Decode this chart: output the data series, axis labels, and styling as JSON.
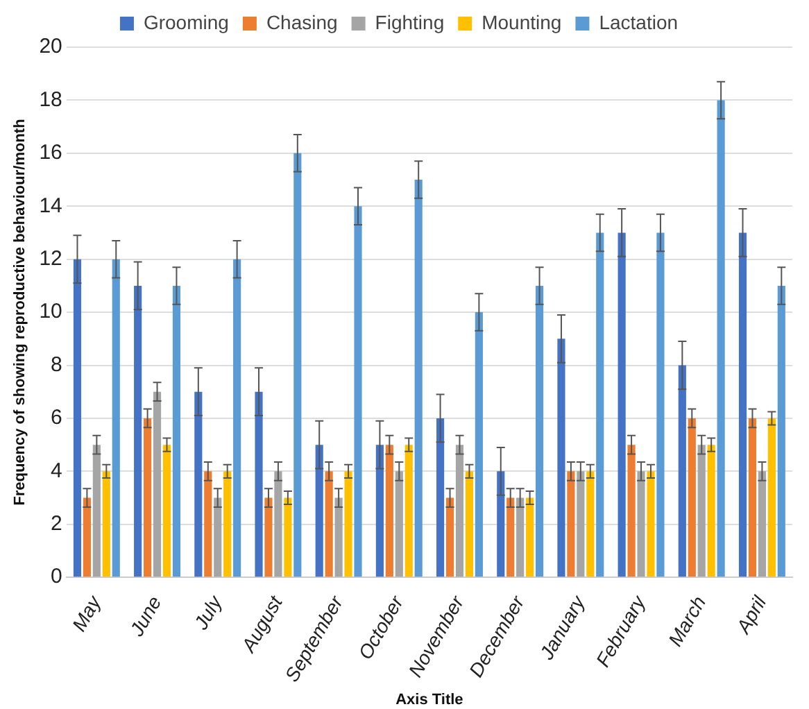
{
  "chart_data": {
    "type": "bar",
    "xlabel": "Axis Title",
    "ylabel": "Frequency of showing reproductive behaviour/month",
    "categories": [
      "May",
      "June",
      "July",
      "August",
      "September",
      "October",
      "November",
      "December",
      "January",
      "February",
      "March",
      "April"
    ],
    "series": [
      {
        "name": "Grooming",
        "color": "#4472c4",
        "values": [
          12,
          11,
          7,
          7,
          5,
          5,
          6,
          4,
          9,
          13,
          8,
          13
        ],
        "errors": [
          0.9,
          0.9,
          0.9,
          0.9,
          0.9,
          0.9,
          0.9,
          0.9,
          0.9,
          0.9,
          0.9,
          0.9
        ]
      },
      {
        "name": "Chasing",
        "color": "#ed7d31",
        "values": [
          3,
          6,
          4,
          3,
          4,
          5,
          3,
          3,
          4,
          5,
          6,
          6
        ],
        "errors": [
          0.35,
          0.35,
          0.35,
          0.35,
          0.35,
          0.35,
          0.35,
          0.35,
          0.35,
          0.35,
          0.35,
          0.35
        ]
      },
      {
        "name": "Fighting",
        "color": "#a5a5a5",
        "values": [
          5,
          7,
          3,
          4,
          3,
          4,
          5,
          3,
          4,
          4,
          5,
          4
        ],
        "errors": [
          0.35,
          0.35,
          0.35,
          0.35,
          0.35,
          0.35,
          0.35,
          0.35,
          0.35,
          0.35,
          0.35,
          0.35
        ]
      },
      {
        "name": "Mounting",
        "color": "#ffc000",
        "values": [
          4,
          5,
          4,
          3,
          4,
          5,
          4,
          3,
          4,
          4,
          5,
          6
        ],
        "errors": [
          0.25,
          0.25,
          0.25,
          0.25,
          0.25,
          0.25,
          0.25,
          0.25,
          0.25,
          0.25,
          0.25,
          0.25
        ]
      },
      {
        "name": "Lactation",
        "color": "#5b9bd5",
        "values": [
          12,
          11,
          12,
          16,
          14,
          15,
          10,
          11,
          13,
          13,
          18,
          11
        ],
        "errors": [
          0.7,
          0.7,
          0.7,
          0.7,
          0.7,
          0.7,
          0.7,
          0.7,
          0.7,
          0.7,
          0.7,
          0.7
        ]
      }
    ],
    "ylim": [
      0,
      20
    ],
    "yticks": [
      0,
      2,
      4,
      6,
      8,
      10,
      12,
      14,
      16,
      18,
      20
    ],
    "grid": "y",
    "legend": "top"
  }
}
